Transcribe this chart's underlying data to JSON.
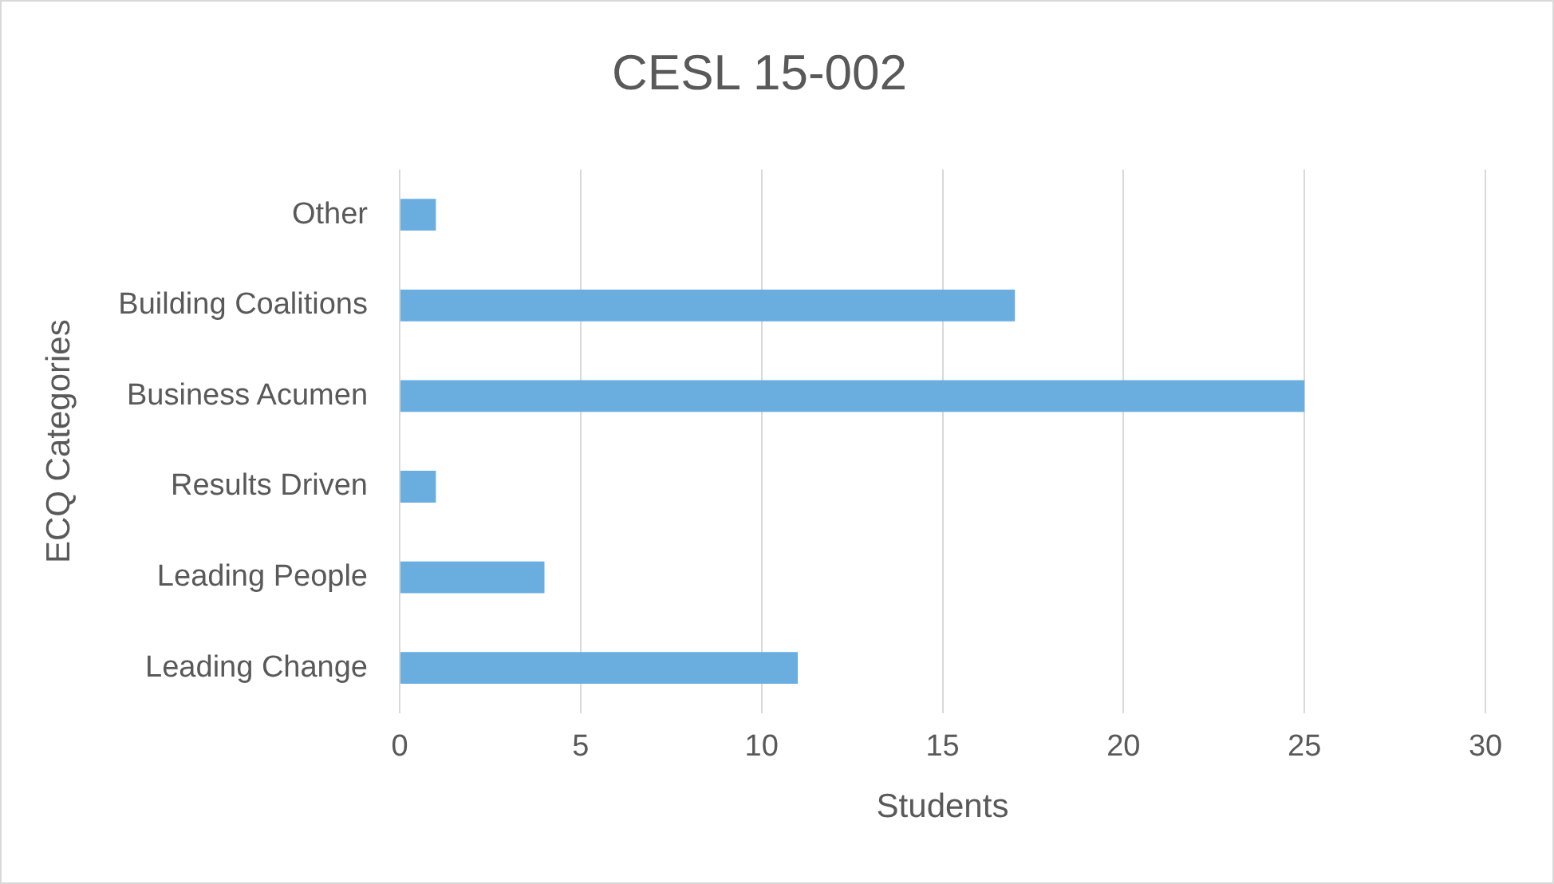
{
  "chart_data": {
    "type": "bar",
    "orientation": "horizontal",
    "title": "CESL 15-002",
    "xlabel": "Students",
    "ylabel": "ECQ Categories",
    "categories": [
      "Other",
      "Building Coalitions",
      "Business Acumen",
      "Results Driven",
      "Leading People",
      "Leading Change"
    ],
    "values": [
      1,
      17,
      25,
      1,
      4,
      11
    ],
    "color": "#6aaddf",
    "xlim": [
      0,
      30
    ],
    "xticks": [
      0,
      5,
      10,
      15,
      20,
      25,
      30
    ],
    "grid": "x",
    "legend": false
  }
}
